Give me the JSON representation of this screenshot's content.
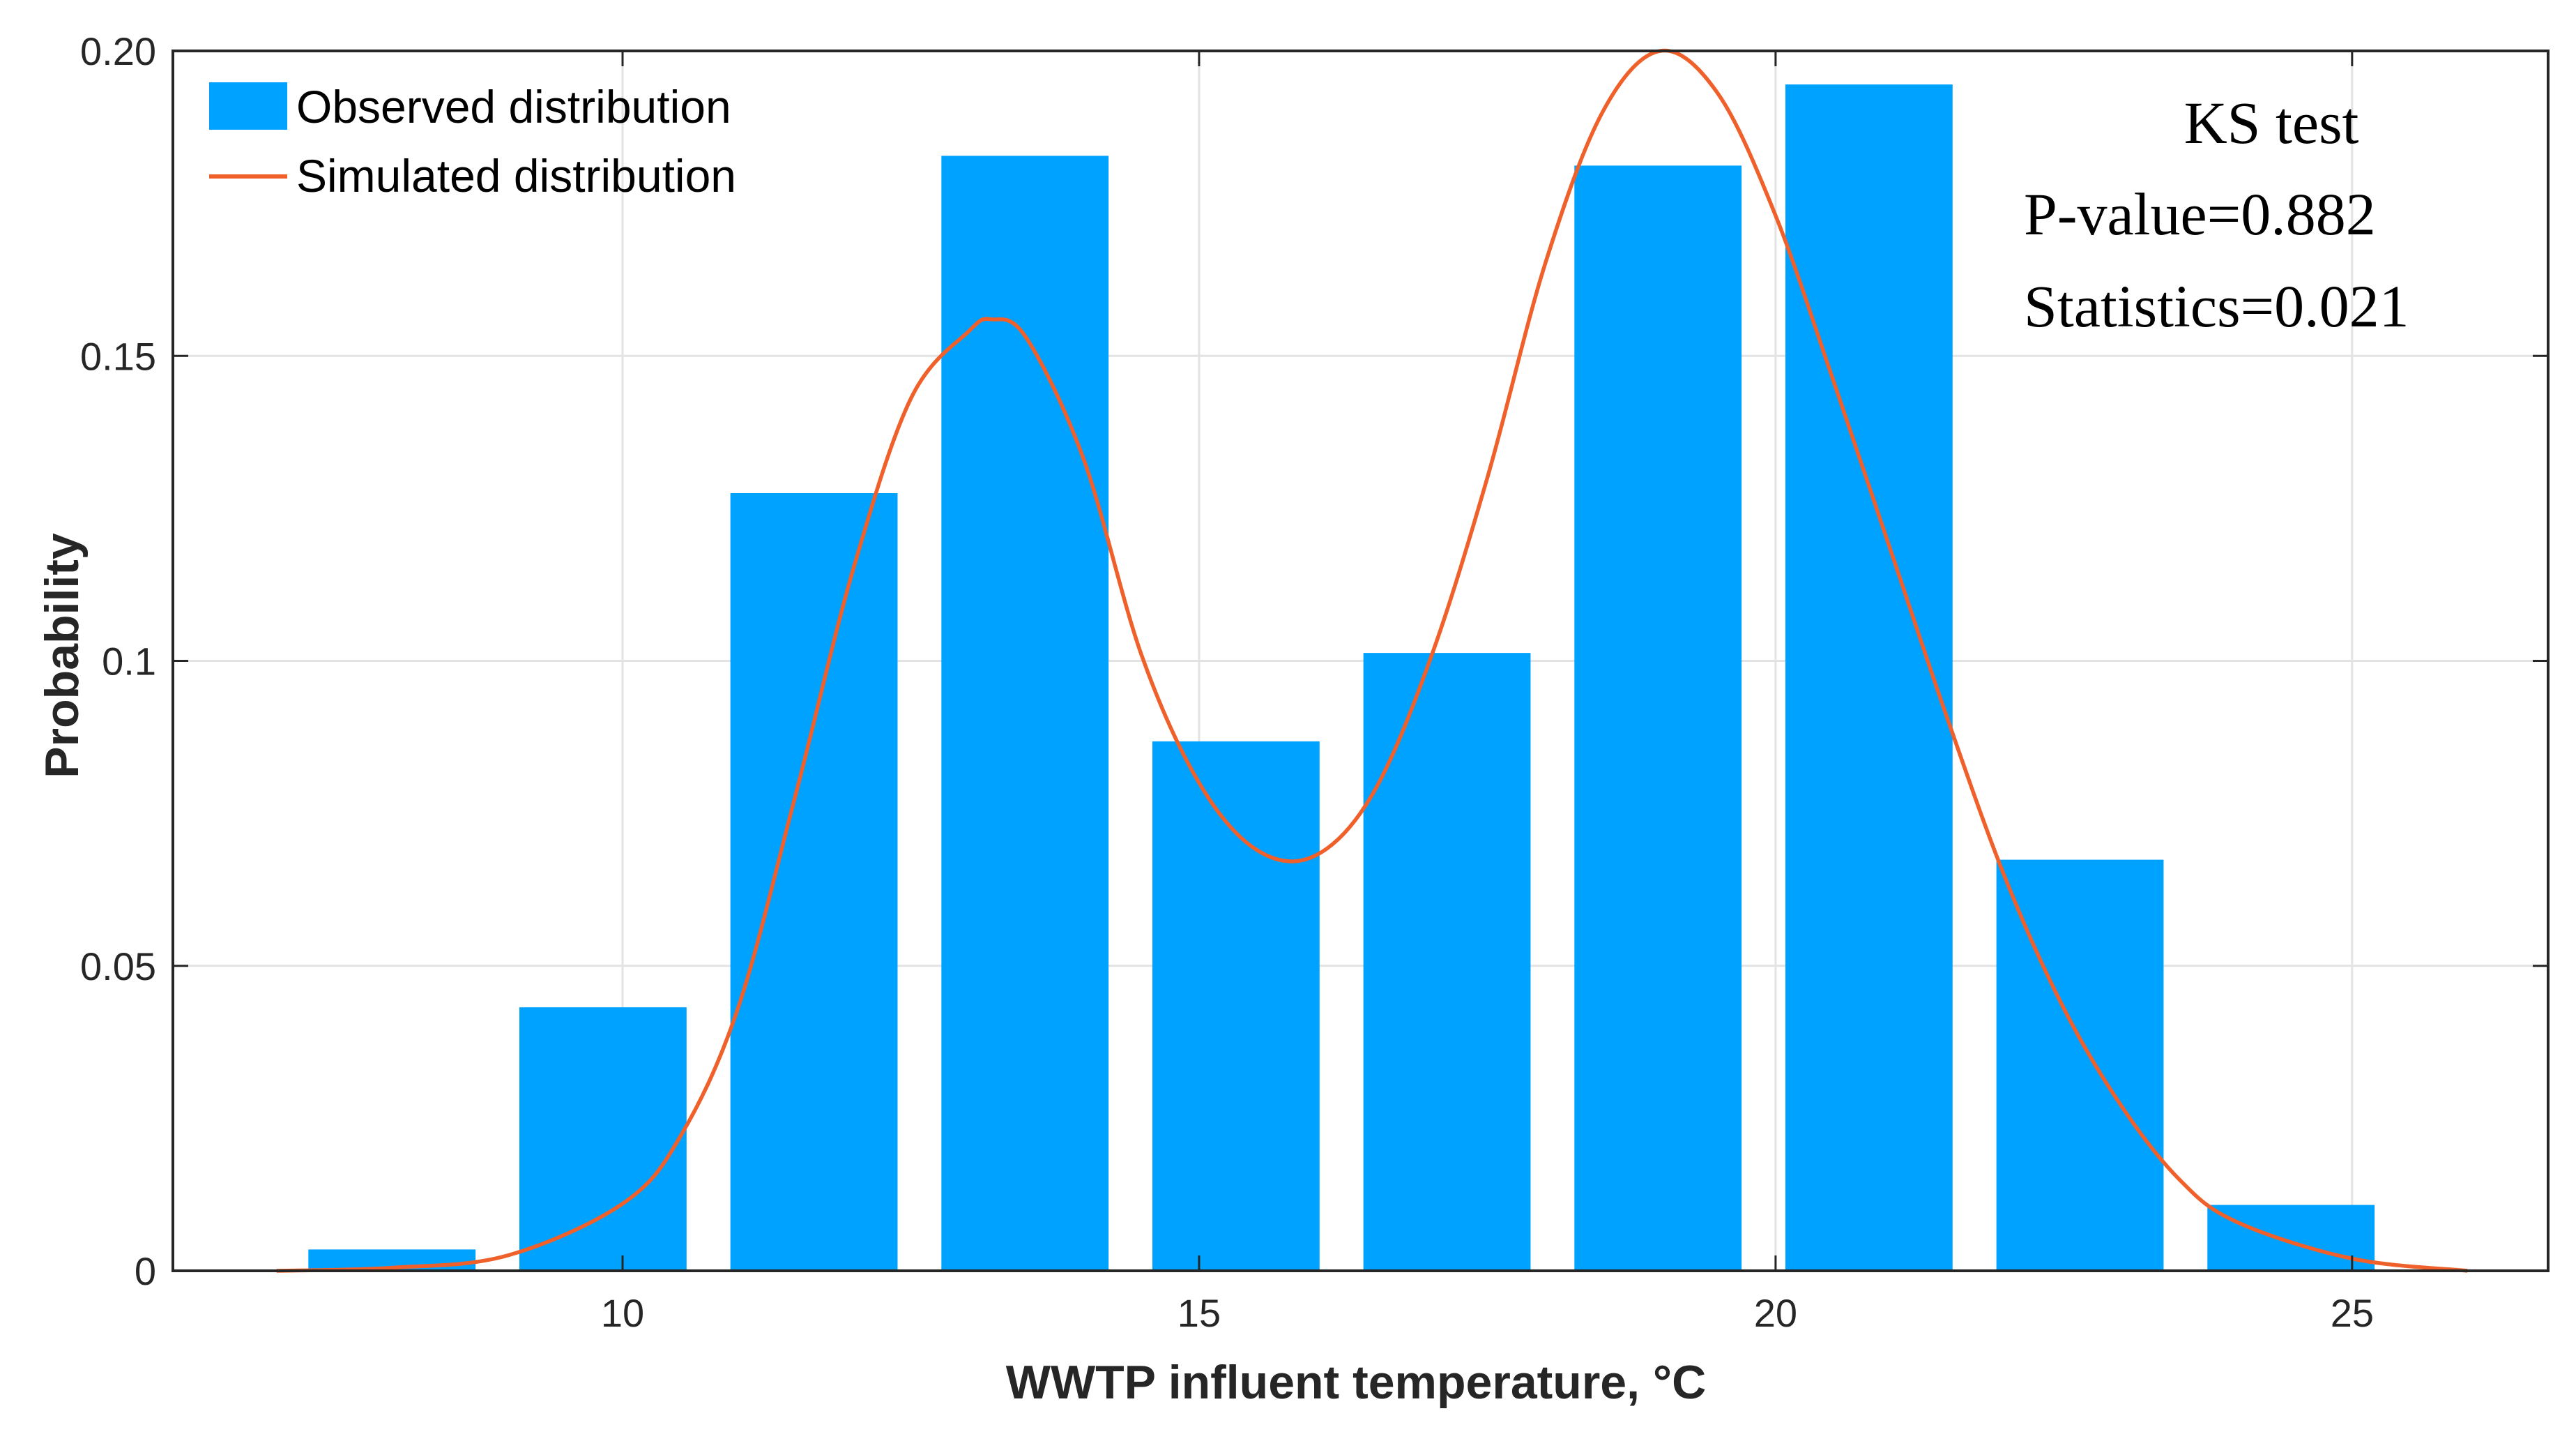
{
  "chart_data": {
    "type": "bar",
    "xlabel": "WWTP influent temperature, °C",
    "ylabel": "Probability",
    "xlim": [
      6.1,
      26.7
    ],
    "ylim": [
      0,
      0.2
    ],
    "grid": true,
    "bar_width": 1.45,
    "x_ticks": [
      10,
      15,
      20,
      25
    ],
    "x_tick_labels": [
      "10",
      "15",
      "20",
      "25"
    ],
    "y_ticks": [
      0,
      0.05,
      0.1,
      0.15,
      0.2
    ],
    "y_tick_labels": [
      "0",
      "0.05",
      "0.1",
      "0.15",
      "0.20"
    ],
    "legend_placement": "top-left",
    "series": [
      {
        "name": "Observed distribution",
        "kind": "bar",
        "color": "#00A2FF",
        "x": [
          8.0,
          9.83,
          11.66,
          13.49,
          15.32,
          17.15,
          18.98,
          20.81,
          22.64,
          24.47
        ],
        "values": [
          0.0035,
          0.0432,
          0.1275,
          0.1828,
          0.0868,
          0.1013,
          0.1812,
          0.1945,
          0.0674,
          0.0108
        ]
      },
      {
        "name": "Simulated distribution",
        "kind": "line",
        "color": "#F0602A",
        "x": [
          7.0,
          8.0,
          9.0,
          10.0,
          10.5,
          11.0,
          11.5,
          12.0,
          12.5,
          13.0,
          13.2,
          13.5,
          14.0,
          14.5,
          15.0,
          15.5,
          16.0,
          16.5,
          17.0,
          17.5,
          18.0,
          18.5,
          19.0,
          19.5,
          20.0,
          20.5,
          21.0,
          21.5,
          22.0,
          22.5,
          23.0,
          23.5,
          24.0,
          25.0,
          26.0
        ],
        "values": [
          0.0,
          0.0005,
          0.0025,
          0.011,
          0.022,
          0.043,
          0.078,
          0.115,
          0.143,
          0.154,
          0.156,
          0.153,
          0.133,
          0.101,
          0.08,
          0.069,
          0.068,
          0.078,
          0.1,
          0.13,
          0.165,
          0.19,
          0.2,
          0.193,
          0.173,
          0.146,
          0.118,
          0.09,
          0.064,
          0.043,
          0.027,
          0.015,
          0.008,
          0.002,
          0.0
        ]
      }
    ],
    "annotations": [
      "KS test",
      "P-value=0.882",
      "Statistics=0.021"
    ]
  }
}
